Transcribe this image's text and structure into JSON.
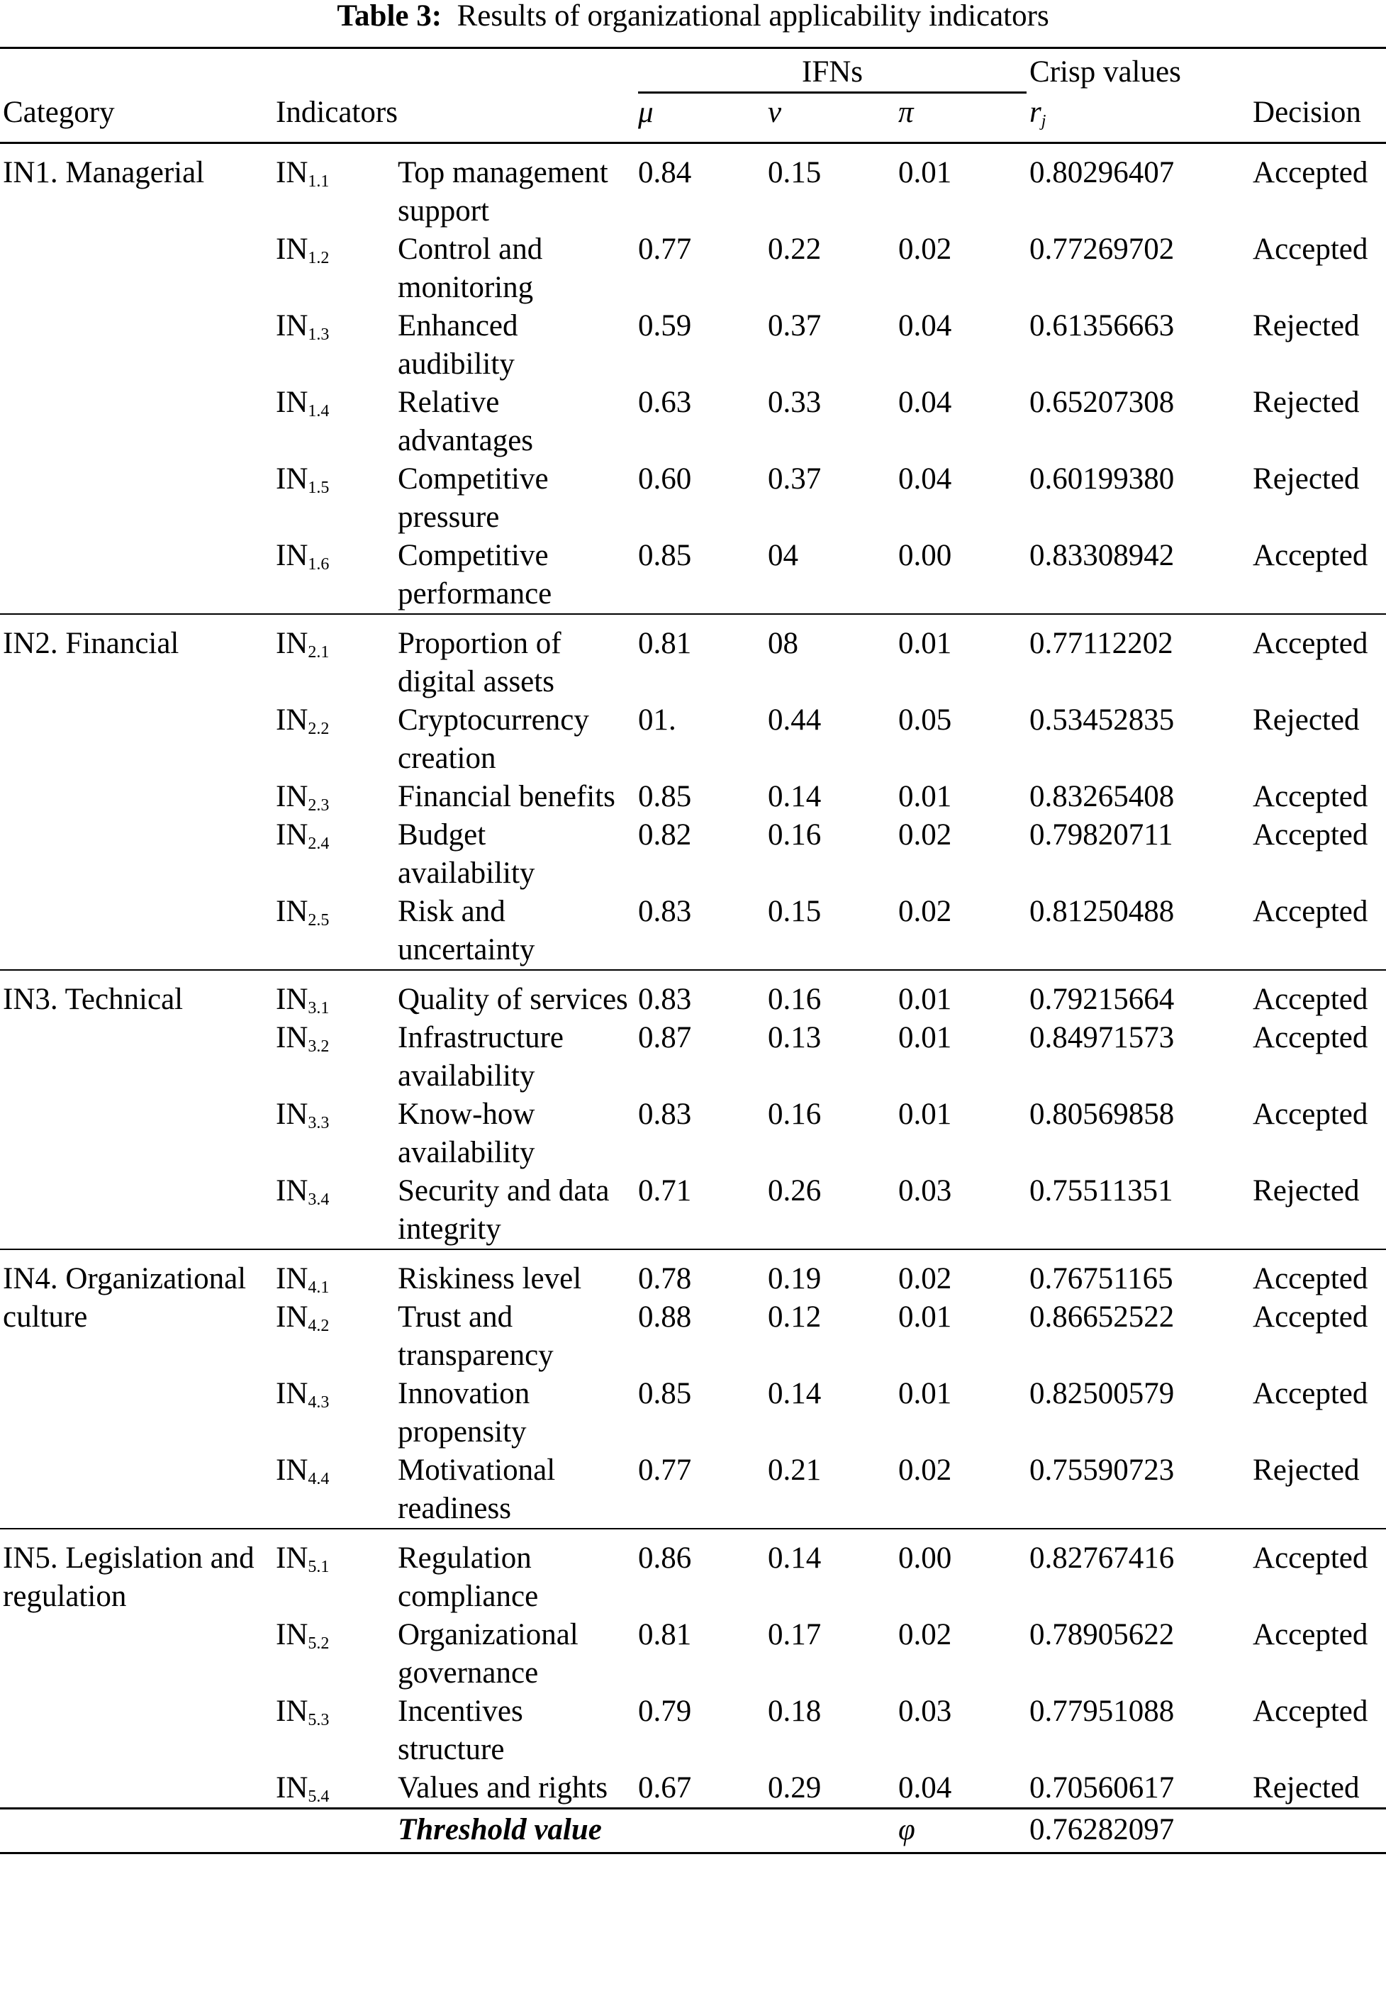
{
  "caption": {
    "label": "Table 3:",
    "text": "Results of organizational applicability indicators"
  },
  "header": {
    "category": "Category",
    "indicators": "Indicators",
    "ifns": "IFNs",
    "crisp": "Crisp values",
    "mu": "μ",
    "v": "v",
    "pi": "π",
    "r": "r",
    "r_sub": "j",
    "decision": "Decision"
  },
  "groups": [
    {
      "category": "IN1. Managerial",
      "rows": [
        {
          "code": "IN",
          "sub": "1.1",
          "name": "Top management support",
          "mu": "0.84",
          "v": "0.15",
          "pi": "0.01",
          "r": "0.80296407",
          "decision": "Accepted"
        },
        {
          "code": "IN",
          "sub": "1.2",
          "name": "Control and monitoring",
          "mu": "0.77",
          "v": "0.22",
          "pi": "0.02",
          "r": "0.77269702",
          "decision": "Accepted"
        },
        {
          "code": "IN",
          "sub": "1.3",
          "name": "Enhanced audibility",
          "mu": "0.59",
          "v": "0.37",
          "pi": "0.04",
          "r": "0.61356663",
          "decision": "Rejected"
        },
        {
          "code": "IN",
          "sub": "1.4",
          "name": "Relative advantages",
          "mu": "0.63",
          "v": "0.33",
          "pi": "0.04",
          "r": "0.65207308",
          "decision": "Rejected"
        },
        {
          "code": "IN",
          "sub": "1.5",
          "name": "Competitive pressure",
          "mu": "0.60",
          "v": "0.37",
          "pi": "0.04",
          "r": "0.60199380",
          "decision": "Rejected"
        },
        {
          "code": "IN",
          "sub": "1.6",
          "name": "Competitive performance",
          "mu": "0.85",
          "v": "04",
          "pi": "0.00",
          "r": "0.83308942",
          "decision": "Accepted"
        }
      ]
    },
    {
      "category": "IN2. Financial",
      "rows": [
        {
          "code": "IN",
          "sub": "2.1",
          "name": "Proportion of digital assets",
          "mu": "0.81",
          "v": "08",
          "pi": "0.01",
          "r": "0.77112202",
          "decision": "Accepted"
        },
        {
          "code": "IN",
          "sub": "2.2",
          "name": "Cryptocurrency creation",
          "mu": "01.",
          "v": "0.44",
          "pi": "0.05",
          "r": "0.53452835",
          "decision": "Rejected"
        },
        {
          "code": "IN",
          "sub": "2.3",
          "name": "Financial benefits",
          "mu": "0.85",
          "v": "0.14",
          "pi": "0.01",
          "r": "0.83265408",
          "decision": "Accepted"
        },
        {
          "code": "IN",
          "sub": "2.4",
          "name": "Budget availability",
          "mu": "0.82",
          "v": "0.16",
          "pi": "0.02",
          "r": "0.79820711",
          "decision": "Accepted"
        },
        {
          "code": "IN",
          "sub": "2.5",
          "name": "Risk and uncertainty",
          "mu": "0.83",
          "v": "0.15",
          "pi": "0.02",
          "r": "0.81250488",
          "decision": "Accepted"
        }
      ]
    },
    {
      "category": "IN3. Technical",
      "rows": [
        {
          "code": "IN",
          "sub": "3.1",
          "name": "Quality of services",
          "mu": "0.83",
          "v": "0.16",
          "pi": "0.01",
          "r": "0.79215664",
          "decision": "Accepted"
        },
        {
          "code": "IN",
          "sub": "3.2",
          "name": "Infrastructure availability",
          "mu": "0.87",
          "v": "0.13",
          "pi": "0.01",
          "r": "0.84971573",
          "decision": "Accepted"
        },
        {
          "code": "IN",
          "sub": "3.3",
          "name": "Know-how availability",
          "mu": "0.83",
          "v": "0.16",
          "pi": "0.01",
          "r": "0.80569858",
          "decision": "Accepted"
        },
        {
          "code": "IN",
          "sub": "3.4",
          "name": "Security and data integrity",
          "mu": "0.71",
          "v": "0.26",
          "pi": "0.03",
          "r": "0.75511351",
          "decision": "Rejected"
        }
      ]
    },
    {
      "category": "IN4. Organizational culture",
      "rows": [
        {
          "code": "IN",
          "sub": "4.1",
          "name": "Riskiness level",
          "mu": "0.78",
          "v": "0.19",
          "pi": "0.02",
          "r": "0.76751165",
          "decision": "Accepted"
        },
        {
          "code": "IN",
          "sub": "4.2",
          "name": "Trust and transparency",
          "mu": "0.88",
          "v": "0.12",
          "pi": "0.01",
          "r": "0.86652522",
          "decision": "Accepted"
        },
        {
          "code": "IN",
          "sub": "4.3",
          "name": "Innovation propensity",
          "mu": "0.85",
          "v": "0.14",
          "pi": "0.01",
          "r": "0.82500579",
          "decision": "Accepted"
        },
        {
          "code": "IN",
          "sub": "4.4",
          "name": "Motivational readiness",
          "mu": "0.77",
          "v": "0.21",
          "pi": "0.02",
          "r": "0.75590723",
          "decision": "Rejected"
        }
      ]
    },
    {
      "category": "IN5. Legislation and regulation",
      "rows": [
        {
          "code": "IN",
          "sub": "5.1",
          "name": "Regulation compliance",
          "mu": "0.86",
          "v": "0.14",
          "pi": "0.00",
          "r": "0.82767416",
          "decision": "Accepted"
        },
        {
          "code": "IN",
          "sub": "5.2",
          "name": "Organizational governance",
          "mu": "0.81",
          "v": "0.17",
          "pi": "0.02",
          "r": "0.78905622",
          "decision": "Accepted"
        },
        {
          "code": "IN",
          "sub": "5.3",
          "name": "Incentives structure",
          "mu": "0.79",
          "v": "0.18",
          "pi": "0.03",
          "r": "0.77951088",
          "decision": "Accepted"
        },
        {
          "code": "IN",
          "sub": "5.4",
          "name": "Values and rights",
          "mu": "0.67",
          "v": "0.29",
          "pi": "0.04",
          "r": "0.70560617",
          "decision": "Rejected"
        }
      ]
    }
  ],
  "threshold": {
    "label": "Threshold value",
    "symbol": "φ",
    "value": "0.76282097"
  }
}
